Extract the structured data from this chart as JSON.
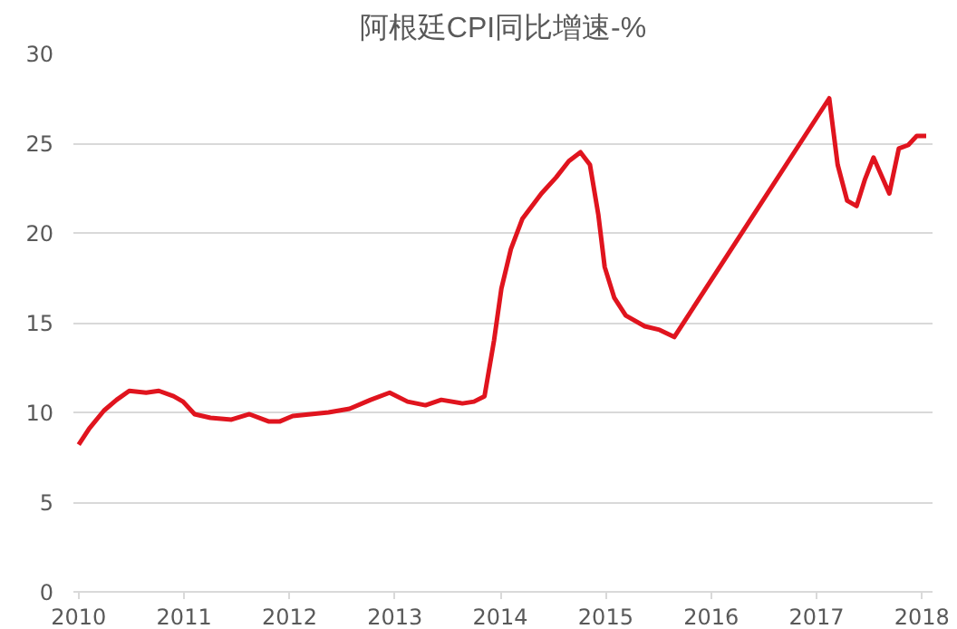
{
  "chart_data": {
    "type": "line",
    "title": "阿根廷CPI同比增速-%",
    "x": [
      2010.0,
      2010.1,
      2010.24,
      2010.36,
      2010.48,
      2010.64,
      2010.76,
      2010.9,
      2010.99,
      2011.1,
      2011.25,
      2011.45,
      2011.62,
      2011.8,
      2011.91,
      2012.03,
      2012.2,
      2012.37,
      2012.57,
      2012.77,
      2012.95,
      2013.12,
      2013.29,
      2013.44,
      2013.64,
      2013.75,
      2013.85,
      2013.94,
      2014.01,
      2014.1,
      2014.21,
      2014.39,
      2014.53,
      2014.65,
      2014.76,
      2014.85,
      2014.93,
      2014.99,
      2015.08,
      2015.19,
      2015.37,
      2015.51,
      2015.65,
      2017.12,
      2017.2,
      2017.29,
      2017.38,
      2017.46,
      2017.54,
      2017.69,
      2017.78,
      2017.87,
      2017.95,
      2018.04
    ],
    "series": [
      {
        "color": "#e0141e",
        "values": [
          8.2,
          9.1,
          10.1,
          10.7,
          11.2,
          11.1,
          11.2,
          10.9,
          10.6,
          9.9,
          9.7,
          9.6,
          9.9,
          9.5,
          9.5,
          9.8,
          9.9,
          10.0,
          10.2,
          10.7,
          11.1,
          10.6,
          10.4,
          10.7,
          10.5,
          10.6,
          10.9,
          14.0,
          16.9,
          19.1,
          20.8,
          22.2,
          23.1,
          24.0,
          24.5,
          23.8,
          21.0,
          18.1,
          16.4,
          15.4,
          14.8,
          14.6,
          14.2,
          27.5,
          23.8,
          21.8,
          21.5,
          23.0,
          24.2,
          22.2,
          24.7,
          24.9,
          25.4,
          25.4
        ]
      }
    ],
    "xlim": [
      2009.95,
      2018.1
    ],
    "xticks": [
      2010,
      2011,
      2012,
      2013,
      2014,
      2015,
      2016,
      2017,
      2018
    ],
    "ylim": [
      0,
      30
    ],
    "yticks": [
      0,
      5,
      10,
      15,
      20,
      25,
      30
    ],
    "grid": "y",
    "marker": "none",
    "line_style": "solid"
  }
}
